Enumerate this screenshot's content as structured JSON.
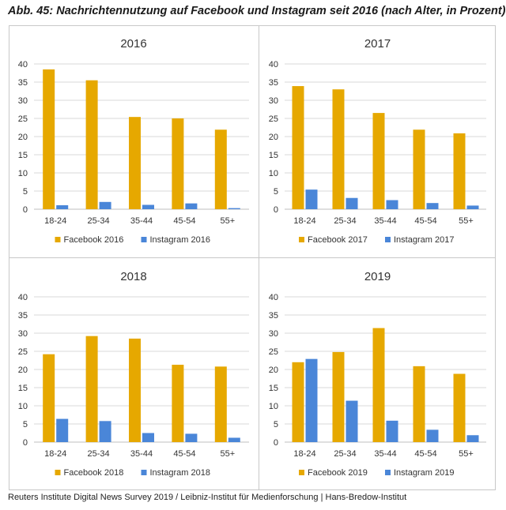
{
  "figure_title": "Abb. 45:  Nachrichtennutzung auf Facebook und Instagram seit 2016 (nach Alter, in Prozent)",
  "source": "Reuters Institute Digital News Survey 2019 / Leibniz-Institut für Medienforschung | Hans-Bredow-Institut",
  "colors": {
    "facebook": "#E6A800",
    "instagram": "#4A86D8",
    "grid": "#d9d9d9",
    "axis": "#bfbfbf"
  },
  "chart_data": [
    {
      "type": "bar",
      "title": "2016",
      "categories": [
        "18-24",
        "25-34",
        "35-44",
        "45-54",
        "55+"
      ],
      "series": [
        {
          "name": "Facebook 2016",
          "values": [
            38.5,
            35.5,
            25.4,
            25.0,
            21.9
          ]
        },
        {
          "name": "Instagram 2016",
          "values": [
            1.1,
            2.0,
            1.2,
            1.6,
            0.3
          ]
        }
      ],
      "y_ticks": [
        "0",
        "5",
        "10",
        "15",
        "20",
        "25",
        "30",
        "35",
        "40"
      ],
      "ylim": [
        0,
        40
      ],
      "grid": true,
      "legend": "bottom"
    },
    {
      "type": "bar",
      "title": "2017",
      "categories": [
        "18-24",
        "25-34",
        "35-44",
        "45-54",
        "55+"
      ],
      "series": [
        {
          "name": "Facebook 2017",
          "values": [
            33.9,
            33.0,
            26.5,
            21.9,
            20.9
          ]
        },
        {
          "name": "Instagram 2017",
          "values": [
            5.4,
            3.1,
            2.5,
            1.7,
            1.0
          ]
        }
      ],
      "y_ticks": [
        "0",
        "5",
        "10",
        "15",
        "20",
        "25",
        "30",
        "35",
        "40"
      ],
      "ylim": [
        0,
        40
      ],
      "grid": true,
      "legend": "bottom"
    },
    {
      "type": "bar",
      "title": "2018",
      "categories": [
        "18-24",
        "25-34",
        "35-44",
        "45-54",
        "55+"
      ],
      "series": [
        {
          "name": "Facebook 2018",
          "values": [
            24.2,
            29.2,
            28.5,
            21.3,
            20.8
          ]
        },
        {
          "name": "Instagram 2018",
          "values": [
            6.4,
            5.8,
            2.5,
            2.3,
            1.2
          ]
        }
      ],
      "y_ticks": [
        "0",
        "5",
        "10",
        "15",
        "20",
        "25",
        "30",
        "35",
        "40"
      ],
      "ylim": [
        0,
        40
      ],
      "grid": true,
      "legend": "bottom"
    },
    {
      "type": "bar",
      "title": "2019",
      "categories": [
        "18-24",
        "25-34",
        "35-44",
        "45-54",
        "55+"
      ],
      "series": [
        {
          "name": "Facebook 2019",
          "values": [
            22.0,
            24.8,
            31.4,
            20.9,
            18.8
          ]
        },
        {
          "name": "Instagram 2019",
          "values": [
            22.9,
            11.4,
            5.9,
            3.4,
            1.9
          ]
        }
      ],
      "y_ticks": [
        "0",
        "5",
        "10",
        "15",
        "20",
        "25",
        "30",
        "35",
        "40"
      ],
      "ylim": [
        0,
        40
      ],
      "grid": true,
      "legend": "bottom"
    }
  ]
}
